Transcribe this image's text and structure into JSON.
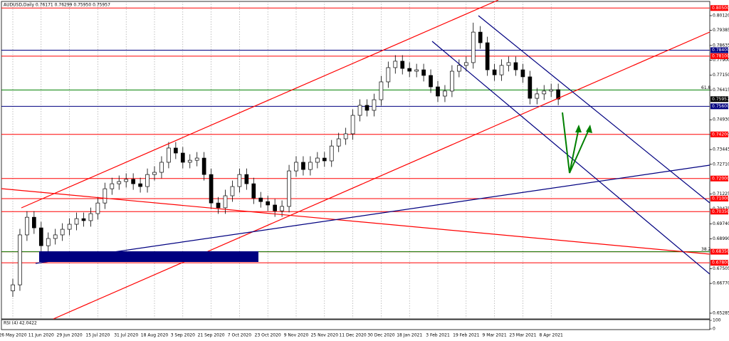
{
  "chart_data": {
    "type": "candlestick",
    "title": "AUDUSD,Daily  0.76171 0.76299 0.75950 0.75957",
    "categories": [
      "26 May 2020",
      null,
      null,
      null,
      "11 Jun 2020",
      null,
      null,
      null,
      "29 Jun 2020",
      null,
      null,
      null,
      "15 Jul 2020",
      null,
      null,
      null,
      "31 Jul 2020",
      null,
      null,
      null,
      "18 Aug 2020",
      null,
      null,
      null,
      "3 Sep 2020",
      null,
      null,
      null,
      "21 Sep 2020",
      null,
      null,
      null,
      "7 Oct 2020",
      null,
      null,
      null,
      "23 Oct 2020",
      null,
      null,
      null,
      "9 Nov 2020",
      null,
      null,
      null,
      "25 Nov 2020",
      null,
      null,
      null,
      "11 Dec 2020",
      null,
      null,
      null,
      "30 Dec 2020",
      null,
      null,
      null,
      "18 Jan 2021",
      null,
      null,
      null,
      "3 Feb 2021",
      null,
      null,
      null,
      "19 Feb 2021",
      null,
      null,
      null,
      "9 Mar 2021",
      null,
      null,
      null,
      "23 Mar 2021",
      null,
      null,
      null,
      "8 Apr 2021",
      null
    ],
    "open": [
      0.664,
      0.667,
      0.6919,
      0.7007,
      0.6954,
      0.6865,
      0.6901,
      0.6919,
      0.6947,
      0.6972,
      0.7,
      0.699,
      0.7025,
      0.7078,
      0.7149,
      0.7174,
      0.7185,
      0.7196,
      0.7174,
      0.716,
      0.722,
      0.7231,
      0.7281,
      0.7352,
      0.7327,
      0.7281,
      0.7291,
      0.7302,
      0.722,
      0.7078,
      0.7054,
      0.7114,
      0.716,
      0.722,
      0.7174,
      0.7103,
      0.7085,
      0.7068,
      0.7039,
      0.7061,
      0.7238,
      0.7281,
      0.7245,
      0.7281,
      0.7302,
      0.7288,
      0.7362,
      0.7398,
      0.7423,
      0.7515,
      0.7565,
      0.754,
      0.7593,
      0.7682,
      0.7753,
      0.7785,
      0.7749,
      0.7735,
      0.7742,
      0.7714,
      0.7657,
      0.7611,
      0.7636,
      0.7735,
      0.7764,
      0.7778,
      0.793,
      0.7877,
      0.7742,
      0.7717,
      0.7764,
      0.7778,
      0.7742,
      0.7707,
      0.76,
      0.7622,
      0.7636,
      0.7643
    ],
    "high": [
      0.67,
      0.6949,
      0.7037,
      0.7037,
      0.6984,
      0.6931,
      0.6949,
      0.6977,
      0.7002,
      0.703,
      0.703,
      0.7055,
      0.7108,
      0.7179,
      0.7204,
      0.7215,
      0.7226,
      0.7226,
      0.7204,
      0.725,
      0.7261,
      0.7311,
      0.7382,
      0.7382,
      0.7357,
      0.7321,
      0.7332,
      0.7332,
      0.725,
      0.7108,
      0.7144,
      0.719,
      0.725,
      0.725,
      0.7204,
      0.7133,
      0.7115,
      0.7098,
      0.7091,
      0.7268,
      0.7311,
      0.7311,
      0.7311,
      0.7332,
      0.7332,
      0.7392,
      0.7428,
      0.7453,
      0.7545,
      0.7595,
      0.7595,
      0.7623,
      0.7712,
      0.7783,
      0.7815,
      0.7815,
      0.7779,
      0.7772,
      0.7772,
      0.7744,
      0.7687,
      0.7666,
      0.7765,
      0.7794,
      0.7808,
      0.7977,
      0.796,
      0.7907,
      0.7772,
      0.7794,
      0.7808,
      0.7808,
      0.7772,
      0.7737,
      0.7652,
      0.7666,
      0.7673,
      0.7673
    ],
    "low": [
      0.661,
      0.664,
      0.6889,
      0.6924,
      0.6835,
      0.6835,
      0.6871,
      0.6889,
      0.6917,
      0.6942,
      0.696,
      0.696,
      0.6995,
      0.7048,
      0.7119,
      0.7144,
      0.7155,
      0.7144,
      0.713,
      0.713,
      0.719,
      0.7201,
      0.7251,
      0.7297,
      0.7251,
      0.7251,
      0.7261,
      0.719,
      0.7048,
      0.7024,
      0.7024,
      0.7084,
      0.713,
      0.7144,
      0.7073,
      0.7055,
      0.7038,
      0.7009,
      0.7009,
      0.7031,
      0.7208,
      0.7215,
      0.7215,
      0.7251,
      0.7258,
      0.7258,
      0.7332,
      0.7368,
      0.7393,
      0.7485,
      0.751,
      0.751,
      0.7563,
      0.7652,
      0.7723,
      0.7719,
      0.7705,
      0.7705,
      0.7684,
      0.7627,
      0.7581,
      0.7581,
      0.7606,
      0.7705,
      0.7734,
      0.7748,
      0.7847,
      0.7712,
      0.7687,
      0.7687,
      0.7734,
      0.7712,
      0.7677,
      0.757,
      0.757,
      0.7592,
      0.7606,
      0.7566
    ],
    "close": [
      0.667,
      0.6919,
      0.7007,
      0.6954,
      0.6865,
      0.6901,
      0.6919,
      0.6947,
      0.6972,
      0.7,
      0.699,
      0.7025,
      0.7078,
      0.7149,
      0.7174,
      0.7185,
      0.7196,
      0.7174,
      0.716,
      0.722,
      0.7231,
      0.7281,
      0.7352,
      0.7327,
      0.7281,
      0.7291,
      0.7302,
      0.722,
      0.7078,
      0.7054,
      0.7114,
      0.716,
      0.722,
      0.7174,
      0.7103,
      0.7085,
      0.7068,
      0.7039,
      0.7061,
      0.7238,
      0.7281,
      0.7245,
      0.7281,
      0.7302,
      0.7288,
      0.7362,
      0.7398,
      0.7423,
      0.7515,
      0.7565,
      0.754,
      0.7593,
      0.7682,
      0.7753,
      0.7785,
      0.7749,
      0.7735,
      0.7742,
      0.7714,
      0.7657,
      0.7611,
      0.7636,
      0.7735,
      0.7764,
      0.7778,
      0.793,
      0.7877,
      0.7742,
      0.7717,
      0.7764,
      0.7778,
      0.7742,
      0.7707,
      0.76,
      0.7622,
      0.7636,
      0.7643,
      0.7596
    ],
    "ylim": [
      0.65,
      0.8083
    ],
    "yticks": [
      {
        "value": 0.8012,
        "label": "0.80120"
      },
      {
        "value": 0.79385,
        "label": "0.79385"
      },
      {
        "value": 0.78635,
        "label": "0.78635"
      },
      {
        "value": 0.779,
        "label": "0.77900"
      },
      {
        "value": 0.7715,
        "label": "0.77150"
      },
      {
        "value": 0.76415,
        "label": "0.76415"
      },
      {
        "value": 0.7493,
        "label": "0.74930"
      },
      {
        "value": 0.74195,
        "label": "0.74195"
      },
      {
        "value": 0.73445,
        "label": "0.73445"
      },
      {
        "value": 0.7271,
        "label": "0.72710"
      },
      {
        "value": 0.71225,
        "label": "0.71225"
      },
      {
        "value": 0.70475,
        "label": "0.70475"
      },
      {
        "value": 0.6974,
        "label": "0.69740"
      },
      {
        "value": 0.6899,
        "label": "0.68990"
      },
      {
        "value": 0.67505,
        "label": "0.67505"
      },
      {
        "value": 0.6677,
        "label": "0.66770"
      },
      {
        "value": 0.65285,
        "label": "0.65285"
      }
    ],
    "levels": [
      {
        "value": 0.805,
        "label": "0.80500",
        "color": "#ff0000"
      },
      {
        "value": 0.784,
        "label": "0.78400",
        "color": "#000080"
      },
      {
        "value": 0.781,
        "label": "0.78100",
        "color": "#ff0000"
      },
      {
        "value": 0.75957,
        "label": "0.75957",
        "color": "#000000"
      },
      {
        "value": 0.756,
        "label": "0.75600",
        "color": "#000080"
      },
      {
        "value": 0.742,
        "label": "0.74200",
        "color": "#ff0000"
      },
      {
        "value": 0.72,
        "label": "0.72000",
        "color": "#ff0000"
      },
      {
        "value": 0.71,
        "label": "0.71000",
        "color": "#ff0000"
      },
      {
        "value": 0.7035,
        "label": "0.70350",
        "color": "#ff0000"
      },
      {
        "value": 0.6835,
        "label": "0.68350",
        "color": "#ff0000"
      },
      {
        "value": 0.678,
        "label": "0.67800",
        "color": "#ff0000"
      }
    ],
    "fib_levels": [
      {
        "value": 0.76415,
        "label": "61.8",
        "color": "#008000"
      },
      {
        "value": 0.6835,
        "label": "38.2",
        "color": "#008000"
      }
    ],
    "indicator": {
      "title": "RSI (4) 42.0422",
      "ylim": [
        0,
        100
      ],
      "yticks": [
        100,
        0
      ]
    }
  }
}
